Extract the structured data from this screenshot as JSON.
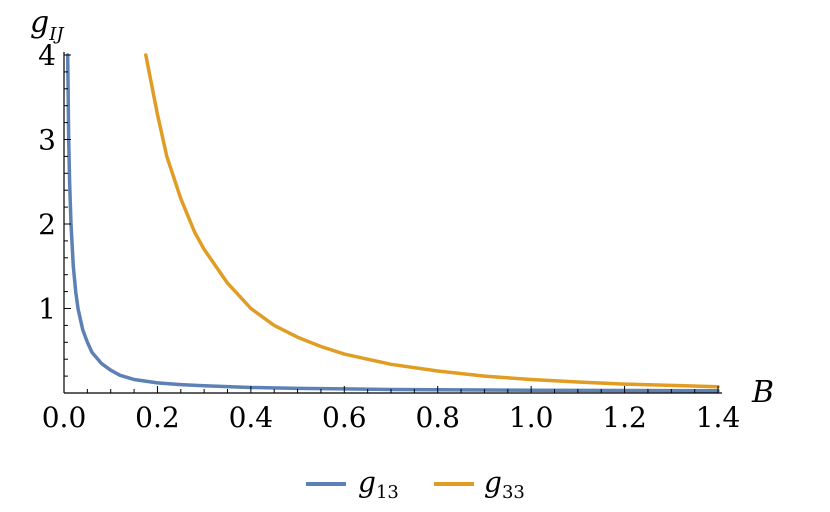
{
  "chart_data": {
    "type": "line",
    "xlabel": "B",
    "ylabel": "g_IJ",
    "ylabel_parts": {
      "base": "g",
      "sub": "IJ"
    },
    "xlim": [
      0,
      1.4
    ],
    "ylim": [
      0,
      4
    ],
    "x_ticks": [
      "0.0",
      "0.2",
      "0.4",
      "0.6",
      "0.8",
      "1.0",
      "1.2",
      "1.4"
    ],
    "y_ticks": [
      "1",
      "2",
      "3",
      "4"
    ],
    "grid": false,
    "legend_position": "bottom-center",
    "series": [
      {
        "name": "g13",
        "name_parts": {
          "base": "g",
          "sub": "13"
        },
        "color": "#5e81b5",
        "points": [
          [
            0.008,
            4.0
          ],
          [
            0.01,
            3.0
          ],
          [
            0.012,
            2.5
          ],
          [
            0.015,
            2.0
          ],
          [
            0.02,
            1.5
          ],
          [
            0.025,
            1.2
          ],
          [
            0.03,
            1.0
          ],
          [
            0.04,
            0.75
          ],
          [
            0.05,
            0.6
          ],
          [
            0.06,
            0.48
          ],
          [
            0.08,
            0.35
          ],
          [
            0.1,
            0.27
          ],
          [
            0.12,
            0.21
          ],
          [
            0.15,
            0.16
          ],
          [
            0.2,
            0.12
          ],
          [
            0.25,
            0.1
          ],
          [
            0.3,
            0.085
          ],
          [
            0.4,
            0.065
          ],
          [
            0.5,
            0.055
          ],
          [
            0.6,
            0.048
          ],
          [
            0.7,
            0.042
          ],
          [
            0.8,
            0.038
          ],
          [
            0.9,
            0.035
          ],
          [
            1.0,
            0.033
          ],
          [
            1.1,
            0.031
          ],
          [
            1.2,
            0.029
          ],
          [
            1.3,
            0.028
          ],
          [
            1.4,
            0.027
          ]
        ]
      },
      {
        "name": "g33",
        "name_parts": {
          "base": "g",
          "sub": "33"
        },
        "color": "#e19c24",
        "points": [
          [
            0.175,
            4.0
          ],
          [
            0.2,
            3.3
          ],
          [
            0.22,
            2.8
          ],
          [
            0.25,
            2.3
          ],
          [
            0.28,
            1.9
          ],
          [
            0.3,
            1.7
          ],
          [
            0.35,
            1.3
          ],
          [
            0.4,
            1.0
          ],
          [
            0.45,
            0.8
          ],
          [
            0.5,
            0.66
          ],
          [
            0.55,
            0.55
          ],
          [
            0.6,
            0.46
          ],
          [
            0.65,
            0.4
          ],
          [
            0.7,
            0.34
          ],
          [
            0.8,
            0.26
          ],
          [
            0.9,
            0.2
          ],
          [
            1.0,
            0.16
          ],
          [
            1.1,
            0.13
          ],
          [
            1.2,
            0.105
          ],
          [
            1.3,
            0.09
          ],
          [
            1.4,
            0.075
          ]
        ]
      }
    ]
  }
}
